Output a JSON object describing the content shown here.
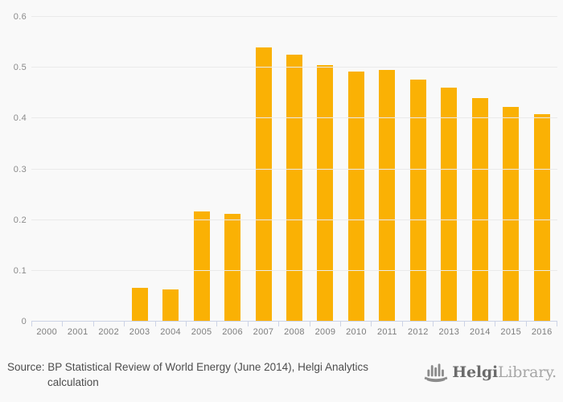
{
  "chart_data": {
    "type": "bar",
    "categories": [
      "2000",
      "2001",
      "2002",
      "2003",
      "2004",
      "2005",
      "2006",
      "2007",
      "2008",
      "2009",
      "2010",
      "2011",
      "2012",
      "2013",
      "2014",
      "2015",
      "2016"
    ],
    "values": [
      0,
      0,
      0,
      0.066,
      0.064,
      0.217,
      0.212,
      0.54,
      0.526,
      0.505,
      0.492,
      0.496,
      0.476,
      0.461,
      0.44,
      0.422,
      0.408
    ],
    "title": "",
    "xlabel": "",
    "ylabel": "",
    "ylim": [
      0,
      0.6
    ],
    "yticks": [
      0,
      0.1,
      0.2,
      0.3,
      0.4,
      0.5,
      0.6
    ],
    "grid": true,
    "legend": "none",
    "bar_color": "#FAB104"
  },
  "footer": {
    "source_line1": "Source: BP Statistical Review of World Energy (June 2014), Helgi Analytics",
    "source_line2": "calculation",
    "logo": {
      "icon": "ship-bar-chart-icon",
      "text_bold": "Helgi",
      "text_light": "Library."
    }
  },
  "colors": {
    "background": "#F9F9F9",
    "bar": "#FAB104",
    "gridline": "#EAEAEA",
    "axis": "#CCD3E6",
    "axis_label": "#8A8A8A",
    "source_text": "#4D4D4D",
    "logo_dark": "#6B6B6B",
    "logo_light": "#A6A6A6"
  }
}
